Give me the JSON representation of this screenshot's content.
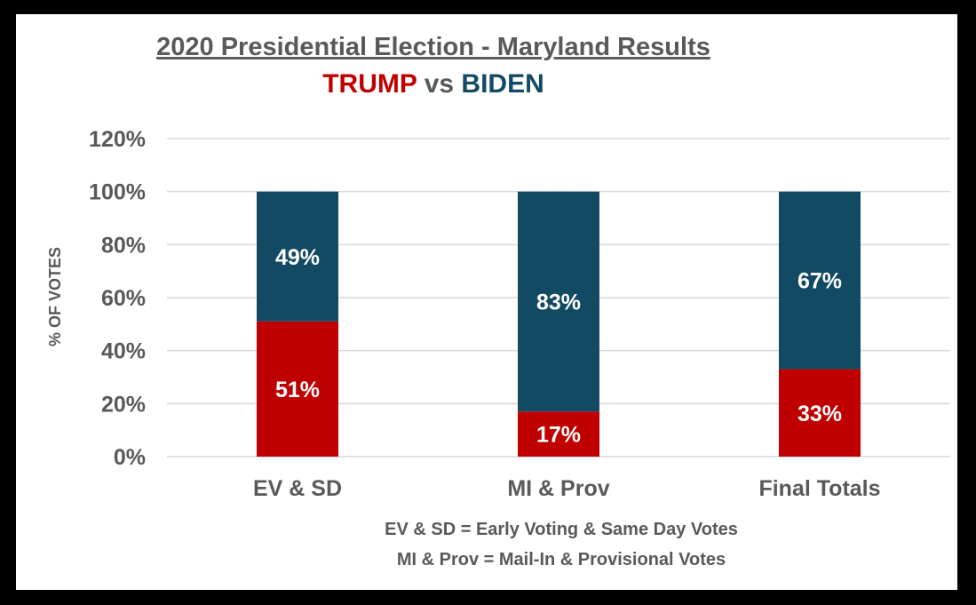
{
  "chart_data": {
    "type": "bar",
    "stacked": true,
    "title": "2020 Presidential Election - Maryland Results",
    "subtitle": {
      "trump_label": "TRUMP",
      "vs_label": " vs ",
      "biden_label": "BIDEN"
    },
    "ylabel": "% OF VOTES",
    "xlabel": "",
    "ylim": [
      0,
      120
    ],
    "yticks": [
      "0%",
      "20%",
      "40%",
      "60%",
      "80%",
      "100%",
      "120%"
    ],
    "grid": true,
    "categories": [
      "EV & SD",
      "MI & Prov",
      "Final Totals"
    ],
    "series": [
      {
        "name": "TRUMP",
        "color": "#c00000",
        "values": [
          51,
          17,
          33
        ],
        "labels": [
          "51%",
          "17%",
          "33%"
        ]
      },
      {
        "name": "BIDEN",
        "color": "#134a63",
        "values": [
          49,
          83,
          67
        ],
        "labels": [
          "49%",
          "83%",
          "67%"
        ]
      }
    ],
    "footnotes": [
      "EV & SD = Early Voting & Same Day Votes",
      "MI & Prov = Mail-In & Provisional Votes"
    ]
  },
  "colors": {
    "trump": "#c00000",
    "biden": "#134a63",
    "vs": "#595959",
    "text": "#595959",
    "grid": "#d9d9d9"
  }
}
